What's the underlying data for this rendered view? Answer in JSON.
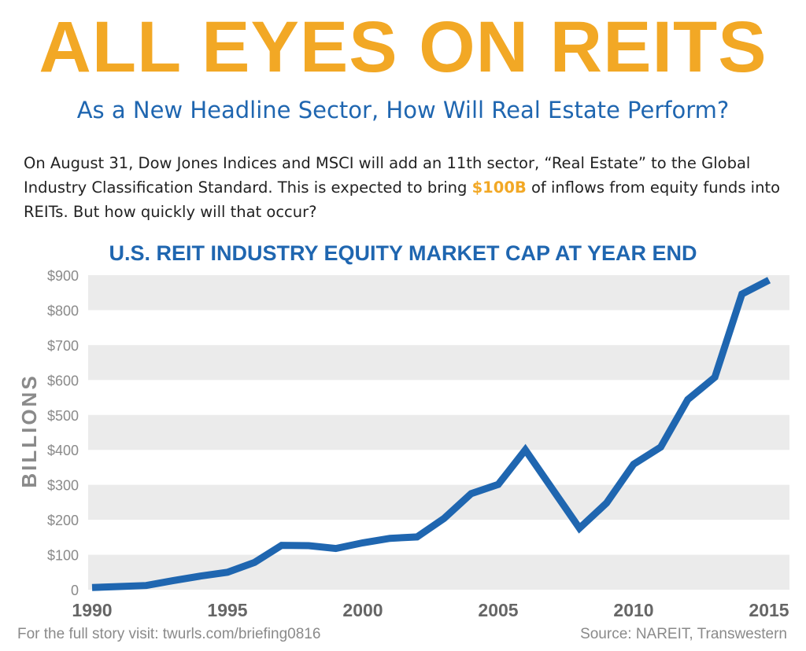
{
  "headline": "ALL EYES ON REITS",
  "subheadline": "As a New Headline Sector, How Will Real Estate Perform?",
  "intro": {
    "before": "On August 31, Dow Jones Indices and MSCI will add an 11th sector, “Real Estate” to the Global Industry Classification Standard. This is expected to bring ",
    "highlight": "$100B",
    "after": " of inflows from equity funds into REITs. But how quickly will that occur?"
  },
  "colors": {
    "headline": "#f2a825",
    "accent_blue": "#1f66b0",
    "line": "#1f66b0",
    "band": "#ebebeb",
    "axis_text": "#8a8a8a",
    "year_text": "#666666"
  },
  "chart_data": {
    "type": "line",
    "title": "U.S. REIT INDUSTRY EQUITY MARKET CAP AT YEAR END",
    "ylabel": "BILLIONS",
    "xlabel": "",
    "x": [
      1990,
      1991,
      1992,
      1993,
      1994,
      1995,
      1996,
      1997,
      1998,
      1999,
      2000,
      2001,
      2002,
      2003,
      2004,
      2005,
      2006,
      2007,
      2008,
      2009,
      2010,
      2011,
      2012,
      2013,
      2014,
      2015
    ],
    "series": [
      {
        "values": [
          6,
          9,
          12,
          26,
          39,
          50,
          78,
          127,
          126,
          118,
          134,
          147,
          151,
          204,
          275,
          301,
          400,
          288,
          176,
          248,
          359,
          408,
          544,
          608,
          846,
          886
        ]
      }
    ],
    "xlim": [
      1990,
      2015
    ],
    "ylim": [
      0,
      900
    ],
    "xticks": [
      1990,
      1995,
      2000,
      2005,
      2010,
      2015
    ],
    "xtick_labels": [
      "1990",
      "1995",
      "2000",
      "2005",
      "2010",
      "2015"
    ],
    "yticks": [
      0,
      100,
      200,
      300,
      400,
      500,
      600,
      700,
      800,
      900
    ],
    "ytick_labels": [
      "0",
      "$100",
      "$200",
      "$300",
      "$400",
      "$500",
      "$600",
      "$700",
      "$800",
      "$900"
    ],
    "grid": "alternating horizontal bands",
    "legend": "none"
  },
  "footer": {
    "left": "For the full story visit: twurls.com/briefing0816",
    "right": "Source: NAREIT, Transwestern"
  }
}
